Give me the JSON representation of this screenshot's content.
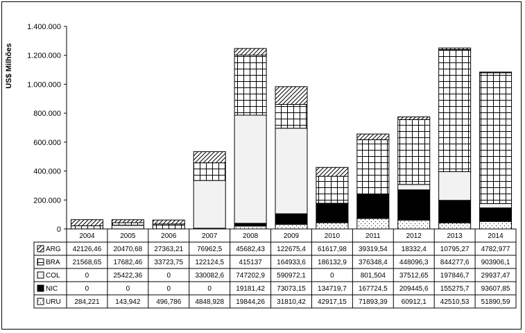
{
  "chart_data": {
    "type": "bar",
    "stacked": true,
    "ylabel": "US$ Milhões",
    "ylim": [
      0,
      1400000
    ],
    "yticks": [
      "0",
      "200.000",
      "400.000",
      "600.000",
      "800.000",
      "1.000.000",
      "1.200.000",
      "1.400.000"
    ],
    "categories": [
      "2004",
      "2005",
      "2006",
      "2007",
      "2008",
      "2009",
      "2010",
      "2011",
      "2012",
      "2013",
      "2014"
    ],
    "series": [
      {
        "name": "URU",
        "pattern": "dots",
        "values": [
          284.221,
          143.942,
          496.786,
          4848.928,
          19844.26,
          31810.42,
          42917.15,
          71893.39,
          60912.1,
          42510.53,
          51890.59
        ],
        "labels": [
          "284,221",
          "143,942",
          "496,786",
          "4848,928",
          "19844,26",
          "31810,42",
          "42917,15",
          "71893,39",
          "60912,1",
          "42510,53",
          "51890,59"
        ]
      },
      {
        "name": "NIC",
        "pattern": "solid-black",
        "values": [
          0,
          0,
          0,
          0,
          19181.42,
          73073.15,
          134719.7,
          167724.5,
          209445.6,
          155275.7,
          93607.85
        ],
        "labels": [
          "0",
          "0",
          "0",
          "0",
          "19181,42",
          "73073,15",
          "134719,7",
          "167724,5",
          "209445,6",
          "155275,7",
          "93607,85"
        ]
      },
      {
        "name": "COL",
        "pattern": "light-gray",
        "values": [
          0,
          25422.36,
          0,
          330082.6,
          747202.9,
          590972.1,
          0,
          801.504,
          37512.65,
          197846.7,
          29937.47
        ],
        "labels": [
          "0",
          "25422,36",
          "0",
          "330082,6",
          "747202,9",
          "590972,1",
          "0",
          "801,504",
          "37512,65",
          "197846,7",
          "29937,47"
        ]
      },
      {
        "name": "BRA",
        "pattern": "grid",
        "values": [
          21568.65,
          17682.46,
          33723.75,
          122124.5,
          415137,
          164933.6,
          186132.9,
          376348.4,
          448096.3,
          844277.6,
          903906.1
        ],
        "labels": [
          "21568,65",
          "17682,46",
          "33723,75",
          "122124,5",
          "415137",
          "164933,6",
          "186132,9",
          "376348,4",
          "448096,3",
          "844277,6",
          "903906,1"
        ]
      },
      {
        "name": "ARG",
        "pattern": "diagonal",
        "values": [
          42126.46,
          20470.68,
          27363.21,
          76962.5,
          45682.43,
          122675.4,
          61617.98,
          39319.54,
          18332.4,
          10795.27,
          4782.977
        ],
        "labels": [
          "42126,46",
          "20470,68",
          "27363,21",
          "76962,5",
          "45682,43",
          "122675,4",
          "61617,98",
          "39319,54",
          "18332,4",
          "10795,27",
          "4782,977"
        ]
      }
    ],
    "table_row_order": [
      "ARG",
      "BRA",
      "COL",
      "NIC",
      "URU"
    ],
    "grid": false,
    "legend": "data-table"
  }
}
